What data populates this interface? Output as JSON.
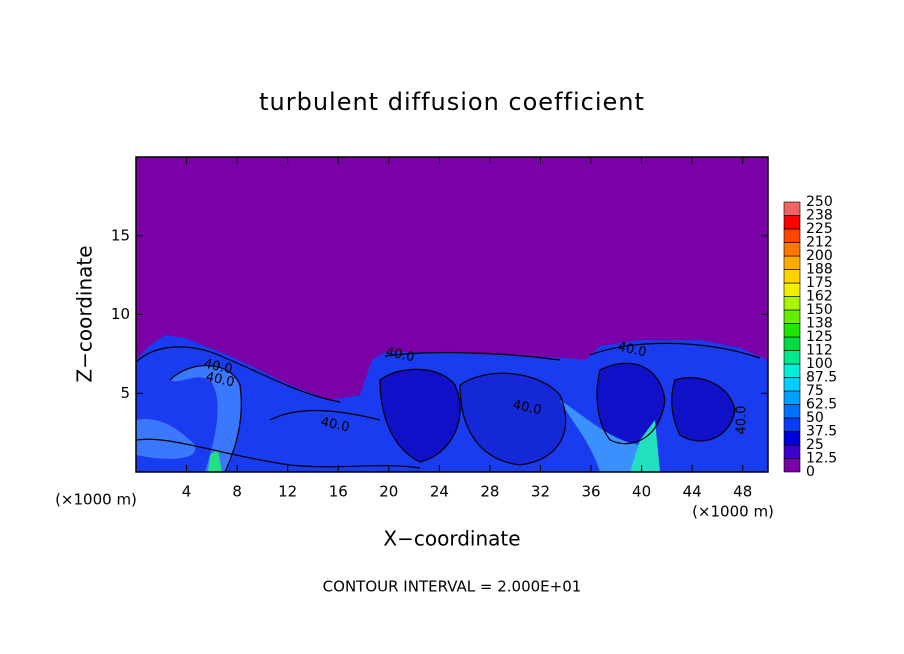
{
  "chart_data": {
    "type": "contour",
    "title": "turbulent diffusion coefficient",
    "x_label": "X−coordinate",
    "y_label": "Z−coordinate",
    "x_unit": "(×1000 m)",
    "y_unit": "(×1000 m)",
    "footer": "CONTOUR INTERVAL = 2.000E+01",
    "xlim": [
      0,
      50
    ],
    "ylim": [
      0,
      20
    ],
    "xticks": [
      4,
      8,
      12,
      16,
      20,
      24,
      28,
      32,
      36,
      40,
      44,
      48
    ],
    "yticks": [
      5,
      10,
      15
    ],
    "background_color": "#7a00a8",
    "contour_labels": [
      "40.0",
      "40.0",
      "40.0",
      "40.0",
      "40.0",
      "40.0",
      "40.0"
    ],
    "colorbar": {
      "levels": [
        0,
        12.5,
        25,
        37.5,
        50,
        62.5,
        75,
        87.5,
        100,
        {
          "value": 112.5,
          "label": "112"
        },
        125,
        {
          "value": 137.5,
          "label": "138"
        },
        150,
        {
          "value": 162.5,
          "label": "162"
        },
        175,
        {
          "value": 187.5,
          "label": "188"
        },
        200,
        {
          "value": 212.5,
          "label": "212"
        },
        225,
        {
          "value": 237.5,
          "label": "238"
        },
        250
      ],
      "colors": [
        "#7a00a8",
        "#3c00c8",
        "#0000dc",
        "#0a3cff",
        "#0070ff",
        "#00a0ff",
        "#00d0ff",
        "#00f0d8",
        "#00e88c",
        "#00dc46",
        "#1ee600",
        "#64f000",
        "#aaf500",
        "#f0f000",
        "#ffd200",
        "#ffaa00",
        "#ff7800",
        "#ff4600",
        "#ff0000",
        "#f06464"
      ]
    }
  }
}
